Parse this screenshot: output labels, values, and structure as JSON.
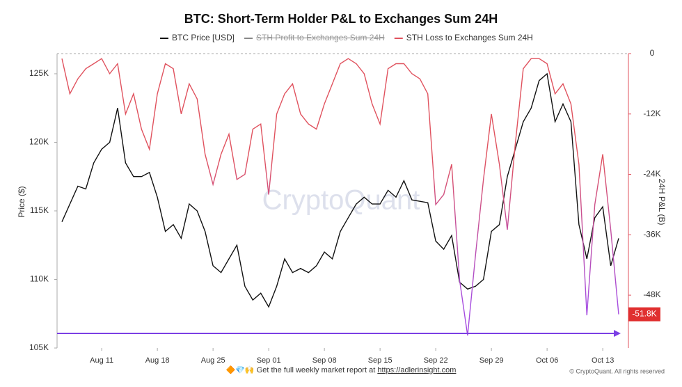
{
  "chart_data": {
    "type": "line",
    "title": "BTC: Short-Term Holder P&L to Exchanges Sum 24H",
    "y_label": "Price ($)",
    "y2_label": "24H P&L (B)",
    "watermark": "CryptoQuant",
    "footer": {
      "text": "Get the full weekly market report at",
      "link": "https://adlerinsight.com",
      "copyright": "© CryptoQuant. All rights reserved"
    },
    "x": [
      "Aug 6",
      "Aug 7",
      "Aug 8",
      "Aug 9",
      "Aug 10",
      "Aug 11",
      "Aug 12",
      "Aug 13",
      "Aug 14",
      "Aug 15",
      "Aug 16",
      "Aug 17",
      "Aug 18",
      "Aug 19",
      "Aug 20",
      "Aug 21",
      "Aug 22",
      "Aug 23",
      "Aug 24",
      "Aug 25",
      "Aug 26",
      "Aug 27",
      "Aug 28",
      "Aug 29",
      "Aug 30",
      "Aug 31",
      "Sep 1",
      "Sep 2",
      "Sep 3",
      "Sep 4",
      "Sep 5",
      "Sep 6",
      "Sep 7",
      "Sep 8",
      "Sep 9",
      "Sep 10",
      "Sep 11",
      "Sep 12",
      "Sep 13",
      "Sep 14",
      "Sep 15",
      "Sep 16",
      "Sep 17",
      "Sep 18",
      "Sep 19",
      "Sep 20",
      "Sep 21",
      "Sep 22",
      "Sep 23",
      "Sep 24",
      "Sep 25",
      "Sep 26",
      "Sep 27",
      "Sep 28",
      "Sep 29",
      "Sep 30",
      "Oct 1",
      "Oct 2",
      "Oct 3",
      "Oct 4",
      "Oct 5",
      "Oct 6",
      "Oct 7",
      "Oct 8",
      "Oct 9",
      "Oct 10",
      "Oct 11",
      "Oct 12",
      "Oct 13",
      "Oct 14",
      "Oct 15"
    ],
    "xticks": [
      "Aug 11",
      "Aug 18",
      "Aug 25",
      "Sep 1",
      "Sep 8",
      "Sep 15",
      "Sep 22",
      "Sep 29",
      "Oct 6",
      "Oct 13"
    ],
    "xtick_labels": [
      "Aug 11",
      "Aug 18",
      "Aug 25",
      "Sep 01",
      "Sep 08",
      "Sep 15",
      "Sep 22",
      "Sep 29",
      "Oct 06",
      "Oct 13"
    ],
    "ylim": [
      105000,
      126470
    ],
    "yticks": [
      {
        "value": 105000,
        "label": "105K"
      },
      {
        "value": 110000,
        "label": "110K"
      },
      {
        "value": 115000,
        "label": "115K"
      },
      {
        "value": 120000,
        "label": "120K"
      },
      {
        "value": 125000,
        "label": "125K"
      }
    ],
    "y2lim": [
      -58500,
      0
    ],
    "y2ticks": [
      {
        "value": 0,
        "label": "0"
      },
      {
        "value": -12000,
        "label": "-12K"
      },
      {
        "value": -24000,
        "label": "-24K"
      },
      {
        "value": -36000,
        "label": "-36K"
      },
      {
        "value": -48000,
        "label": "-48K"
      }
    ],
    "reference_line": {
      "value": -55600,
      "color": "#7b3fe4",
      "axis": "y2"
    },
    "series": [
      {
        "name": "BTC Price [USD]",
        "color": "#111111",
        "values": [
          114200,
          115500,
          116800,
          116600,
          118500,
          119500,
          120000,
          122500,
          118500,
          117500,
          117500,
          117800,
          116000,
          113500,
          114000,
          113000,
          115500,
          115000,
          113500,
          111000,
          110500,
          111500,
          112500,
          109500,
          108500,
          109000,
          108000,
          109500,
          111500,
          110500,
          110800,
          110500,
          111000,
          112000,
          111500,
          113500,
          114500,
          115500,
          116000,
          115500,
          115500,
          116500,
          116000,
          117200,
          115800,
          115700,
          115600,
          112800,
          112200,
          113200,
          109800,
          109300,
          109500,
          110000,
          113500,
          114000,
          117500,
          119500,
          121500,
          122500,
          124500,
          125000,
          121500,
          122800,
          121500,
          114000,
          111500,
          114500,
          115300,
          111000,
          113000
        ]
      },
      {
        "name": "STH Profit to Exchanges Sum 24H",
        "color": "#888888",
        "hidden": true
      },
      {
        "name": "STH Loss to Exchanges Sum 24H",
        "color": "#e0525e",
        "color_low": "#a64de0",
        "axis": "y2",
        "last_label": "-51.8K",
        "values": [
          -1000,
          -8000,
          -5000,
          -3000,
          -2000,
          -1000,
          -4000,
          -2000,
          -12000,
          -8000,
          -15000,
          -19000,
          -8000,
          -2000,
          -3000,
          -12000,
          -6000,
          -9000,
          -20000,
          -26000,
          -20000,
          -16000,
          -25000,
          -24000,
          -15000,
          -14000,
          -28000,
          -12000,
          -8000,
          -6000,
          -12000,
          -14000,
          -15000,
          -10000,
          -6000,
          -2000,
          -1000,
          -2000,
          -4000,
          -10000,
          -14000,
          -3000,
          -2000,
          -2000,
          -4000,
          -5000,
          -8000,
          -30000,
          -28000,
          -22000,
          -45000,
          -56000,
          -40000,
          -25000,
          -12000,
          -22000,
          -35000,
          -18000,
          -3000,
          -1000,
          -1000,
          -2000,
          -8000,
          -6000,
          -10000,
          -22000,
          -52000,
          -30000,
          -20000,
          -35000,
          -51800
        ]
      }
    ]
  }
}
